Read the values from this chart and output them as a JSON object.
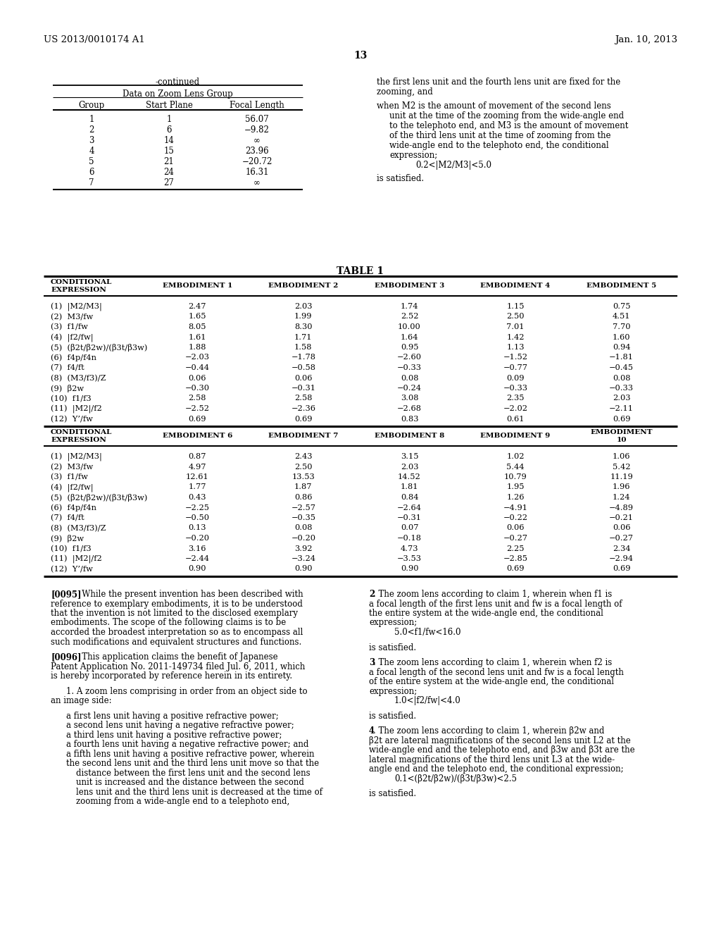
{
  "header_left": "US 2013/0010174 A1",
  "header_right": "Jan. 10, 2013",
  "page_number": "13",
  "bg_color": "#ffffff",
  "continued_label": "-continued",
  "zoom_table_title": "Data on Zoom Lens Group",
  "zoom_table_headers": [
    "Group",
    "Start Plane",
    "Focal Length"
  ],
  "zoom_table_rows": [
    [
      "1",
      "1",
      "56.07"
    ],
    [
      "2",
      "6",
      "−9.82"
    ],
    [
      "3",
      "14",
      "∞"
    ],
    [
      "4",
      "15",
      "23.96"
    ],
    [
      "5",
      "21",
      "−20.72"
    ],
    [
      "6",
      "24",
      "16.31"
    ],
    [
      "7",
      "27",
      "∞"
    ]
  ],
  "right_col_lines": [
    {
      "indent": 0,
      "text": "the first lens unit and the fourth lens unit are fixed for the"
    },
    {
      "indent": 0,
      "text": "zooming, and"
    },
    {
      "indent": -1,
      "text": ""
    },
    {
      "indent": 0,
      "text": "when M2 is the amount of movement of the second lens"
    },
    {
      "indent": 1,
      "text": "unit at the time of the zooming from the wide-angle end"
    },
    {
      "indent": 1,
      "text": "to the telephoto end, and M3 is the amount of movement"
    },
    {
      "indent": 1,
      "text": "of the third lens unit at the time of zooming from the"
    },
    {
      "indent": 1,
      "text": "wide-angle end to the telephoto end, the conditional"
    },
    {
      "indent": 1,
      "text": "expression;"
    },
    {
      "indent": 2,
      "text": "0.2<|M2/M3|<5.0"
    },
    {
      "indent": -1,
      "text": ""
    },
    {
      "indent": 0,
      "text": "is satisfied."
    }
  ],
  "table1_title": "TABLE 1",
  "table1_part1_rows": [
    [
      "(1)  |M2/M3|",
      "2.47",
      "2.03",
      "1.74",
      "1.15",
      "0.75"
    ],
    [
      "(2)  M3/fw",
      "1.65",
      "1.99",
      "2.52",
      "2.50",
      "4.51"
    ],
    [
      "(3)  f1/fw",
      "8.05",
      "8.30",
      "10.00",
      "7.01",
      "7.70"
    ],
    [
      "(4)  |f2/fw|",
      "1.61",
      "1.71",
      "1.64",
      "1.42",
      "1.60"
    ],
    [
      "(5)  (β2t/β2w)/(β3t/β3w)",
      "1.88",
      "1.58",
      "0.95",
      "1.13",
      "0.94"
    ],
    [
      "(6)  f4p/f4n",
      "−2.03",
      "−1.78",
      "−2.60",
      "−1.52",
      "−1.81"
    ],
    [
      "(7)  f4/ft",
      "−0.44",
      "−0.58",
      "−0.33",
      "−0.77",
      "−0.45"
    ],
    [
      "(8)  (M3/f3)/Z",
      "0.06",
      "0.06",
      "0.08",
      "0.09",
      "0.08"
    ],
    [
      "(9)  β2w",
      "−0.30",
      "−0.31",
      "−0.24",
      "−0.33",
      "−0.33"
    ],
    [
      "(10)  f1/f3",
      "2.58",
      "2.58",
      "3.08",
      "2.35",
      "2.03"
    ],
    [
      "(11)  |M2|/f2",
      "−2.52",
      "−2.36",
      "−2.68",
      "−2.02",
      "−2.11"
    ],
    [
      "(12)  Y’/fw",
      "0.69",
      "0.69",
      "0.83",
      "0.61",
      "0.69"
    ]
  ],
  "table1_part2_rows": [
    [
      "(1)  |M2/M3|",
      "0.87",
      "2.43",
      "3.15",
      "1.02",
      "1.06"
    ],
    [
      "(2)  M3/fw",
      "4.97",
      "2.50",
      "2.03",
      "5.44",
      "5.42"
    ],
    [
      "(3)  f1/fw",
      "12.61",
      "13.53",
      "14.52",
      "10.79",
      "11.19"
    ],
    [
      "(4)  |f2/fw|",
      "1.77",
      "1.87",
      "1.81",
      "1.95",
      "1.96"
    ],
    [
      "(5)  (β2t/β2w)/(β3t/β3w)",
      "0.43",
      "0.86",
      "0.84",
      "1.26",
      "1.24"
    ],
    [
      "(6)  f4p/f4n",
      "−2.25",
      "−2.57",
      "−2.64",
      "−4.91",
      "−4.89"
    ],
    [
      "(7)  f4/ft",
      "−0.50",
      "−0.35",
      "−0.31",
      "−0.22",
      "−0.21"
    ],
    [
      "(8)  (M3/f3)/Z",
      "0.13",
      "0.08",
      "0.07",
      "0.06",
      "0.06"
    ],
    [
      "(9)  β2w",
      "−0.20",
      "−0.20",
      "−0.18",
      "−0.27",
      "−0.27"
    ],
    [
      "(10)  f1/f3",
      "3.16",
      "3.92",
      "4.73",
      "2.25",
      "2.34"
    ],
    [
      "(11)  |M2|/f2",
      "−2.44",
      "−3.24",
      "−3.53",
      "−2.85",
      "−2.94"
    ],
    [
      "(12)  Y’/fw",
      "0.90",
      "0.90",
      "0.90",
      "0.69",
      "0.69"
    ]
  ],
  "bottom_left_lines": [
    {
      "bold_prefix": "[0095]",
      "text": "   While the present invention has been described with"
    },
    {
      "indent": 0,
      "text": "reference to exemplary embodiments, it is to be understood"
    },
    {
      "indent": 0,
      "text": "that the invention is not limited to the disclosed exemplary"
    },
    {
      "indent": 0,
      "text": "embodiments. The scope of the following claims is to be"
    },
    {
      "indent": 0,
      "text": "accorded the broadest interpretation so as to encompass all"
    },
    {
      "indent": 0,
      "text": "such modifications and equivalent structures and functions."
    },
    {
      "indent": -1,
      "text": ""
    },
    {
      "bold_prefix": "[0096]",
      "text": "   This application claims the benefit of Japanese"
    },
    {
      "indent": 0,
      "text": "Patent Application No. 2011-149734 filed Jul. 6, 2011, which"
    },
    {
      "indent": 0,
      "text": "is hereby incorporated by reference herein in its entirety."
    },
    {
      "indent": -1,
      "text": ""
    },
    {
      "indent": 1,
      "text": "1. A zoom lens comprising in order from an object side to"
    },
    {
      "indent": 0,
      "text": "an image side:"
    },
    {
      "indent": -1,
      "text": ""
    },
    {
      "indent": 1,
      "text": "a first lens unit having a positive refractive power;"
    },
    {
      "indent": 1,
      "text": "a second lens unit having a negative refractive power;"
    },
    {
      "indent": 1,
      "text": "a third lens unit having a positive refractive power;"
    },
    {
      "indent": 1,
      "text": "a fourth lens unit having a negative refractive power; and"
    },
    {
      "indent": 1,
      "text": "a fifth lens unit having a positive refractive power, wherein"
    },
    {
      "indent": 1,
      "text": "the second lens unit and the third lens unit move so that the"
    },
    {
      "indent": 2,
      "text": "distance between the first lens unit and the second lens"
    },
    {
      "indent": 2,
      "text": "unit is increased and the distance between the second"
    },
    {
      "indent": 2,
      "text": "lens unit and the third lens unit is decreased at the time of"
    },
    {
      "indent": 2,
      "text": "zooming from a wide-angle end to a telephoto end,"
    }
  ],
  "bottom_right_lines": [
    {
      "bold_prefix": "2",
      "text": ". The zoom lens according to claim ⁠⁠⁠1, wherein when ⁠⁠⁠f1 is"
    },
    {
      "indent": 0,
      "text": "a focal length of the first lens unit and fw is a focal length of"
    },
    {
      "indent": 0,
      "text": "the entire system at the wide-angle end, the conditional"
    },
    {
      "indent": 0,
      "text": "expression;"
    },
    {
      "indent": 2,
      "text": "5.0<f1/fw<16.0"
    },
    {
      "indent": -1,
      "text": ""
    },
    {
      "indent": 0,
      "text": "is satisfied."
    },
    {
      "indent": -1,
      "text": ""
    },
    {
      "bold_prefix": "3",
      "text": ". The zoom lens according to claim ⁠⁠⁠1, wherein when ⁠⁠⁠f2 is"
    },
    {
      "indent": 0,
      "text": "a focal length of the second lens unit and fw is a focal length"
    },
    {
      "indent": 0,
      "text": "of the entire system at the wide-angle end, the conditional"
    },
    {
      "indent": 0,
      "text": "expression;"
    },
    {
      "indent": 2,
      "text": "1.0<|f2/fw|<4.0"
    },
    {
      "indent": -1,
      "text": ""
    },
    {
      "indent": 0,
      "text": "is satisfied."
    },
    {
      "indent": -1,
      "text": ""
    },
    {
      "bold_prefix": "4",
      "text": ". The zoom lens according to claim 1, wherein β2w and"
    },
    {
      "indent": 0,
      "text": "β2t are lateral magnifications of the second lens unit L⁠⁠⁠2 at the"
    },
    {
      "indent": 0,
      "text": "wide-angle end and the telephoto end, and β3w and β3t are the"
    },
    {
      "indent": 0,
      "text": "lateral magnifications of the third lens unit L⁠⁠⁠3 at the wide-"
    },
    {
      "indent": 0,
      "text": "angle end and the telephoto end, the conditional expression;"
    },
    {
      "indent": 2,
      "text": "0.1<(β2t/β2w)/(β3t/β3w)<2.5"
    },
    {
      "indent": -1,
      "text": ""
    },
    {
      "indent": 0,
      "text": "is satisfied."
    }
  ]
}
